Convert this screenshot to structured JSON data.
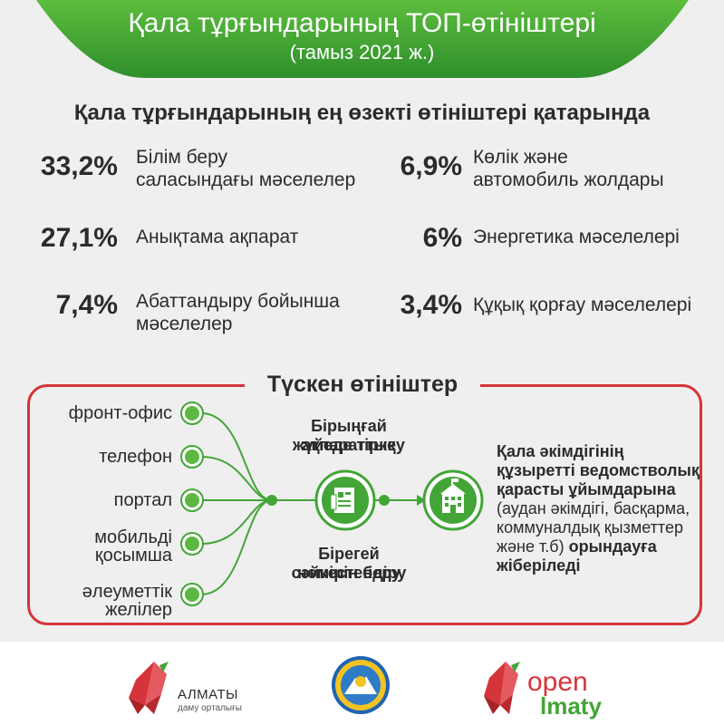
{
  "header": {
    "title": "Қала тұрғындарының ТОП-өтініштері",
    "subtitle": "(тамыз 2021 ж.)"
  },
  "summary": {
    "heading": "Қала тұрғындарының ең өзекті өтініштері қатарында",
    "items": [
      {
        "percent": "33,2%",
        "label_line1": "Білім беру",
        "label_line2": "саласындағы мәселелер"
      },
      {
        "percent": "6,9%",
        "label_line1": "Көлік және",
        "label_line2": "автомобиль жолдары"
      },
      {
        "percent": "27,1%",
        "label_line1": "Анықтама ақпарат",
        "label_line2": ""
      },
      {
        "percent": "6%",
        "label_line1": "Энергетика мәселелері",
        "label_line2": ""
      },
      {
        "percent": "7,4%",
        "label_line1": "Абаттандыру бойынша",
        "label_line2": "мәселелер"
      },
      {
        "percent": "3,4%",
        "label_line1": "Құқық қорғау мәселелері",
        "label_line2": ""
      }
    ]
  },
  "flow": {
    "title": "Түскен өтініштер",
    "channels": [
      {
        "line1": "фронт-офис",
        "line2": ""
      },
      {
        "line1": "телефон",
        "line2": ""
      },
      {
        "line1": "портал",
        "line2": ""
      },
      {
        "line1": "мобильді",
        "line2": "қосымша"
      },
      {
        "line1": "әлеуметтік",
        "line2": "желілер"
      }
    ],
    "register_line1": "Бірыңғай ақпараттық",
    "register_line2": "жүйеде тіркеу",
    "number_line1": "Бірегей сәйкестендіру",
    "number_line2": "нөмірін беру",
    "icon_document": "document-icon",
    "icon_building": "building-icon",
    "result_bold_1": "Қала әкімдігінің құзыретті ведомстволық қарасты ұйымдарына",
    "result_normal": "(аудан әкімдігі, басқарма, коммуналдық қызметтер және т.б)",
    "result_bold_2": "орындауға жіберіледі"
  },
  "footer": {
    "almaty_name": "АЛМАТЫ",
    "almaty_sub": "даму орталығы",
    "open_word": "open",
    "almaty_word": "lmaty",
    "emblem": "city-emblem"
  },
  "colors": {
    "green": "#43a537",
    "red": "#d6343b",
    "dark_text": "#2b2b2b"
  }
}
